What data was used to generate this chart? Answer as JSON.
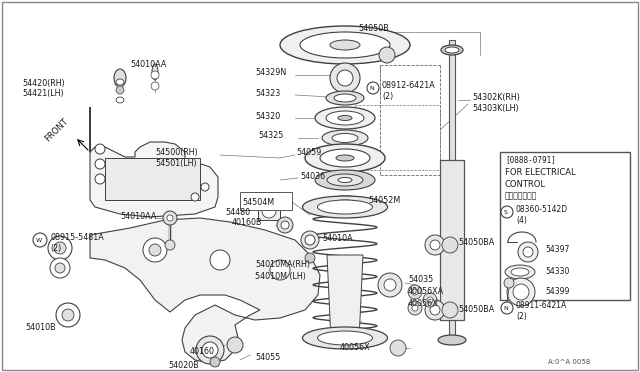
{
  "bg_color": "#ffffff",
  "line_color": "#404040",
  "text_color": "#1a1a1a",
  "fig_width": 6.4,
  "fig_height": 3.72,
  "dpi": 100,
  "inset_label_top": "[0888-0791]",
  "inset_label1": "FOR ELECTRICAL",
  "inset_label2": "CONTROL",
  "inset_label3": "電子制御タイプ",
  "diagram_note": "A:0^A 0058"
}
